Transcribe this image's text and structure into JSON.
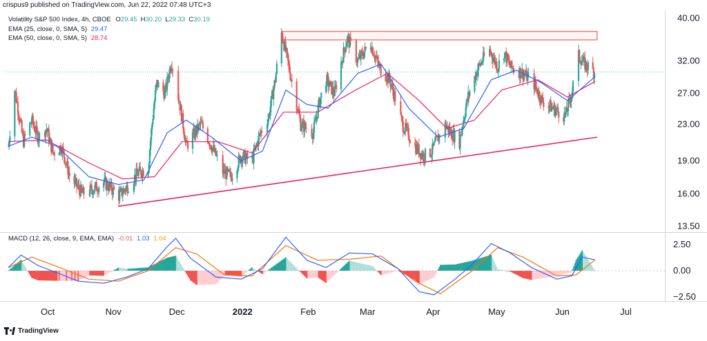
{
  "header": {
    "published_line": "crispus9 published on TradingView.com, Jun 22, 2022 07:48 UTC+3"
  },
  "legend": {
    "symbol": "Volatility S&P 500 Index, 4h, CBOE",
    "ohlc": [
      {
        "k": "O",
        "v": "29.45"
      },
      {
        "k": "H",
        "v": "30.20"
      },
      {
        "k": "L",
        "v": "29.33"
      },
      {
        "k": "C",
        "v": "30.19"
      }
    ],
    "ema25_label": "EMA (25, close, 0, SMA, 5)",
    "ema25_value": "29.47",
    "ema50_label": "EMA (50, close, 0, SMA, 5)",
    "ema50_value": "28.74",
    "macd_label": "MACD (12, 26, close, 9, EMA, EMA)",
    "macd_hist": "-0.01",
    "macd_line": "1.03",
    "macd_signal": "1.04"
  },
  "footer": {
    "brand": "TradingView"
  },
  "colors": {
    "up": "#26a69a",
    "down": "#ef5350",
    "ema25": "#2962ff",
    "ema50": "#e91e63",
    "macd": "#2962ff",
    "signal": "#ff6d00",
    "hist_up": "#26a69a",
    "hist_down": "#ef5350",
    "trendline": "#e91e63",
    "resistance": "#f44336"
  },
  "chart_data": {
    "type": "candlestick",
    "price_axis_ticks": [
      "40.00",
      "32.00",
      "27.00",
      "23.00",
      "19.00",
      "16.00",
      "13.50"
    ],
    "price_axis_values": [
      40,
      32,
      27,
      23,
      19,
      16,
      13.5
    ],
    "price_scale": "log",
    "macd_axis_ticks": [
      "2.50",
      "0.00",
      "−2.50"
    ],
    "macd_axis_values": [
      2.5,
      0,
      -2.5
    ],
    "x_ticks": [
      {
        "label": "Oct",
        "date": "2021-10-01",
        "bold": false
      },
      {
        "label": "Nov",
        "date": "2021-11-01",
        "bold": false
      },
      {
        "label": "Dec",
        "date": "2021-12-01",
        "bold": false
      },
      {
        "label": "2022",
        "date": "2022-01-01",
        "bold": true
      },
      {
        "label": "Feb",
        "date": "2022-02-01",
        "bold": false
      },
      {
        "label": "Mar",
        "date": "2022-03-01",
        "bold": false
      },
      {
        "label": "Apr",
        "date": "2022-04-01",
        "bold": false
      },
      {
        "label": "May",
        "date": "2022-05-01",
        "bold": false
      },
      {
        "label": "Jun",
        "date": "2022-06-01",
        "bold": false
      },
      {
        "label": "Jul",
        "date": "2022-07-01",
        "bold": false
      }
    ],
    "price_path": [
      [
        "2021-09-17",
        20.5
      ],
      [
        "2021-09-20",
        27.5
      ],
      [
        "2021-09-24",
        21.0
      ],
      [
        "2021-09-28",
        23.5
      ],
      [
        "2021-10-01",
        21.5
      ],
      [
        "2021-10-05",
        22.5
      ],
      [
        "2021-10-08",
        19.8
      ],
      [
        "2021-10-12",
        20.5
      ],
      [
        "2021-10-16",
        17.5
      ],
      [
        "2021-10-22",
        16.0
      ],
      [
        "2021-10-28",
        16.5
      ],
      [
        "2021-11-01",
        17.0
      ],
      [
        "2021-11-05",
        16.4
      ],
      [
        "2021-11-08",
        15.8
      ],
      [
        "2021-11-12",
        16.6
      ],
      [
        "2021-11-17",
        17.8
      ],
      [
        "2021-11-22",
        18.3
      ],
      [
        "2021-11-26",
        28.5
      ],
      [
        "2021-11-30",
        27.0
      ],
      [
        "2021-12-03",
        32.0
      ],
      [
        "2021-12-06",
        27.0
      ],
      [
        "2021-12-10",
        20.5
      ],
      [
        "2021-12-14",
        22.0
      ],
      [
        "2021-12-17",
        23.0
      ],
      [
        "2021-12-21",
        21.0
      ],
      [
        "2021-12-27",
        18.0
      ],
      [
        "2021-12-31",
        17.5
      ],
      [
        "2022-01-05",
        19.5
      ],
      [
        "2022-01-10",
        19.0
      ],
      [
        "2022-01-14",
        22.0
      ],
      [
        "2022-01-18",
        24.0
      ],
      [
        "2022-01-21",
        29.0
      ],
      [
        "2022-01-24",
        37.0
      ],
      [
        "2022-01-28",
        30.0
      ],
      [
        "2022-02-02",
        23.0
      ],
      [
        "2022-02-08",
        22.0
      ],
      [
        "2022-02-11",
        26.0
      ],
      [
        "2022-02-14",
        29.0
      ],
      [
        "2022-02-18",
        27.0
      ],
      [
        "2022-02-24",
        36.0
      ],
      [
        "2022-03-01",
        32.0
      ],
      [
        "2022-03-07",
        35.0
      ],
      [
        "2022-03-11",
        31.0
      ],
      [
        "2022-03-16",
        29.0
      ],
      [
        "2022-03-22",
        23.0
      ],
      [
        "2022-03-28",
        20.5
      ],
      [
        "2022-04-01",
        19.5
      ],
      [
        "2022-04-05",
        20.0
      ],
      [
        "2022-04-11",
        23.0
      ],
      [
        "2022-04-14",
        22.0
      ],
      [
        "2022-04-18",
        21.0
      ],
      [
        "2022-04-22",
        26.5
      ],
      [
        "2022-04-27",
        31.0
      ],
      [
        "2022-05-02",
        34.0
      ],
      [
        "2022-05-06",
        31.0
      ],
      [
        "2022-05-09",
        33.5
      ],
      [
        "2022-05-12",
        31.0
      ],
      [
        "2022-05-18",
        30.0
      ],
      [
        "2022-05-23",
        28.5
      ],
      [
        "2022-05-27",
        26.0
      ],
      [
        "2022-06-01",
        25.0
      ],
      [
        "2022-06-07",
        24.0
      ],
      [
        "2022-06-10",
        27.0
      ],
      [
        "2022-06-13",
        33.0
      ],
      [
        "2022-06-16",
        31.5
      ],
      [
        "2022-06-21",
        30.19
      ]
    ],
    "ema25_path": [
      [
        "2021-09-17",
        20.5
      ],
      [
        "2021-09-28",
        21.5
      ],
      [
        "2021-10-10",
        20.5
      ],
      [
        "2021-10-25",
        17.5
      ],
      [
        "2021-11-08",
        16.8
      ],
      [
        "2021-11-20",
        17.2
      ],
      [
        "2021-12-01",
        22.0
      ],
      [
        "2021-12-10",
        23.5
      ],
      [
        "2021-12-22",
        21.5
      ],
      [
        "2022-01-05",
        19.0
      ],
      [
        "2022-01-15",
        20.0
      ],
      [
        "2022-01-26",
        27.5
      ],
      [
        "2022-02-05",
        25.5
      ],
      [
        "2022-02-15",
        25.0
      ],
      [
        "2022-03-01",
        30.0
      ],
      [
        "2022-03-12",
        31.5
      ],
      [
        "2022-03-25",
        25.0
      ],
      [
        "2022-04-08",
        21.5
      ],
      [
        "2022-04-20",
        22.5
      ],
      [
        "2022-05-03",
        29.0
      ],
      [
        "2022-05-15",
        30.5
      ],
      [
        "2022-05-27",
        28.5
      ],
      [
        "2022-06-08",
        26.0
      ],
      [
        "2022-06-21",
        29.47
      ]
    ],
    "ema50_path": [
      [
        "2021-09-17",
        21.0
      ],
      [
        "2021-10-05",
        21.2
      ],
      [
        "2021-10-25",
        18.8
      ],
      [
        "2021-11-10",
        17.3
      ],
      [
        "2021-11-25",
        17.5
      ],
      [
        "2021-12-08",
        21.0
      ],
      [
        "2021-12-25",
        21.0
      ],
      [
        "2022-01-10",
        19.8
      ],
      [
        "2022-01-25",
        24.5
      ],
      [
        "2022-02-10",
        24.5
      ],
      [
        "2022-02-28",
        27.5
      ],
      [
        "2022-03-15",
        30.0
      ],
      [
        "2022-03-30",
        26.0
      ],
      [
        "2022-04-12",
        22.5
      ],
      [
        "2022-04-25",
        23.5
      ],
      [
        "2022-05-08",
        27.5
      ],
      [
        "2022-05-25",
        29.0
      ],
      [
        "2022-06-08",
        26.5
      ],
      [
        "2022-06-21",
        28.74
      ]
    ],
    "trendline": [
      [
        "2021-11-08",
        15.0
      ],
      [
        "2022-06-22",
        21.5
      ]
    ],
    "resistance_zone": {
      "from": "2022-01-24",
      "to": "2022-06-22",
      "low": 35.7,
      "high": 37.3
    },
    "last_price": 30.19,
    "macd_path": [
      [
        "2021-09-17",
        0.3
      ],
      [
        "2021-09-23",
        1.5
      ],
      [
        "2021-10-01",
        0.5
      ],
      [
        "2021-10-10",
        -0.2
      ],
      [
        "2021-10-20",
        -1.0
      ],
      [
        "2021-11-01",
        -1.2
      ],
      [
        "2021-11-12",
        -0.6
      ],
      [
        "2021-11-22",
        0.2
      ],
      [
        "2021-12-01",
        2.3
      ],
      [
        "2021-12-05",
        3.1
      ],
      [
        "2021-12-12",
        1.2
      ],
      [
        "2021-12-24",
        -0.6
      ],
      [
        "2022-01-05",
        -0.8
      ],
      [
        "2022-01-15",
        0.2
      ],
      [
        "2022-01-26",
        3.2
      ],
      [
        "2022-02-05",
        1.0
      ],
      [
        "2022-02-14",
        0.3
      ],
      [
        "2022-02-25",
        1.7
      ],
      [
        "2022-03-08",
        1.6
      ],
      [
        "2022-03-20",
        0.2
      ],
      [
        "2022-03-30",
        -2.0
      ],
      [
        "2022-04-06",
        -2.3
      ],
      [
        "2022-04-16",
        -0.8
      ],
      [
        "2022-04-24",
        0.6
      ],
      [
        "2022-05-03",
        2.6
      ],
      [
        "2022-05-12",
        1.7
      ],
      [
        "2022-05-22",
        0.3
      ],
      [
        "2022-06-03",
        -0.8
      ],
      [
        "2022-06-10",
        -0.5
      ],
      [
        "2022-06-15",
        1.3
      ],
      [
        "2022-06-21",
        1.03
      ]
    ],
    "signal_path": [
      [
        "2021-09-17",
        0.3
      ],
      [
        "2021-09-28",
        1.3
      ],
      [
        "2021-10-10",
        0.4
      ],
      [
        "2021-10-25",
        -0.8
      ],
      [
        "2021-11-08",
        -1.0
      ],
      [
        "2021-11-22",
        0.0
      ],
      [
        "2021-12-05",
        2.2
      ],
      [
        "2021-12-15",
        1.6
      ],
      [
        "2021-12-28",
        -0.4
      ],
      [
        "2022-01-10",
        -0.5
      ],
      [
        "2022-01-26",
        2.4
      ],
      [
        "2022-02-10",
        1.0
      ],
      [
        "2022-02-25",
        1.1
      ],
      [
        "2022-03-12",
        1.4
      ],
      [
        "2022-03-28",
        -1.0
      ],
      [
        "2022-04-09",
        -2.2
      ],
      [
        "2022-04-24",
        0.0
      ],
      [
        "2022-05-06",
        2.2
      ],
      [
        "2022-05-18",
        1.3
      ],
      [
        "2022-06-03",
        -0.5
      ],
      [
        "2022-06-12",
        -0.4
      ],
      [
        "2022-06-21",
        1.04
      ]
    ]
  }
}
